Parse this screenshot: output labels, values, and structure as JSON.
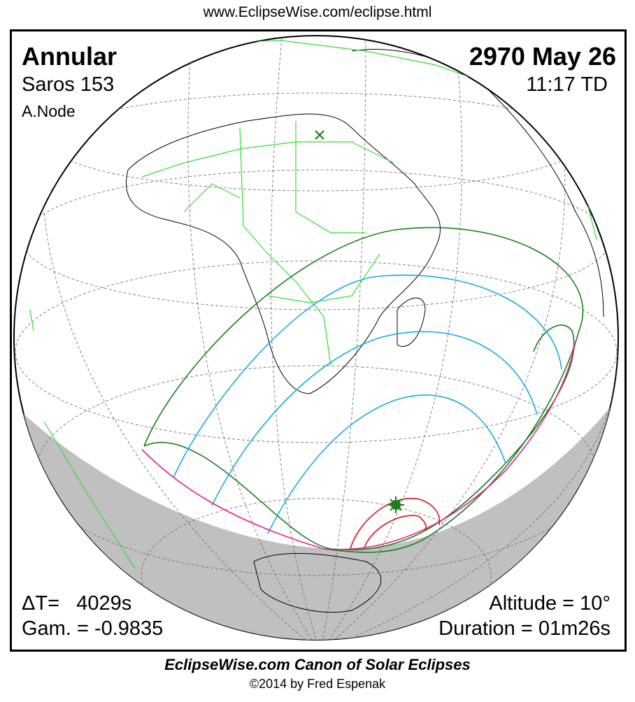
{
  "header": {
    "url": "www.EclipseWise.com/eclipse.html"
  },
  "eclipse": {
    "type": "Annular",
    "saros": "Saros 153",
    "node": "A.Node",
    "date": "2970 May 26",
    "time": "11:17 TD",
    "delta_t": "ΔT=   4029s",
    "gamma": "Gam. = -0.9835",
    "altitude": "Altitude = 10°",
    "duration": "Duration = 01m26s"
  },
  "footer": {
    "title": "EclipseWise.com Canon of Solar Eclipses",
    "copyright": "©2014 by Fred Espenak"
  },
  "colors": {
    "night": "#c0c0c0",
    "borders": "#33dd33",
    "penumbral_limits": "#1a7f1a",
    "central_path": "#1ca9e6",
    "sunrise_sunset": "#e8208c",
    "max_eclipse": "#e01010"
  }
}
